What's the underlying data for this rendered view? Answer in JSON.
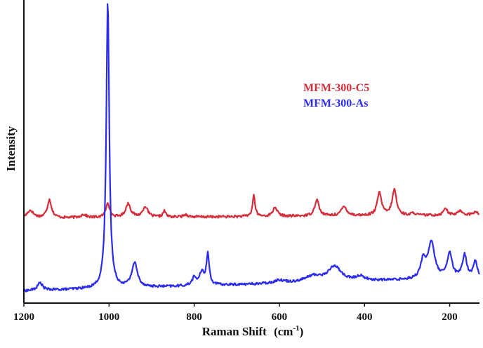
{
  "chart_data": {
    "type": "line",
    "xlabel": "Raman Shift",
    "xlabel_unit_base": "cm",
    "xlabel_unit_sup": "-1",
    "ylabel": "Intensity",
    "xlim": [
      1200,
      130
    ],
    "x_reversed": true,
    "x_ticks": [
      1200,
      1000,
      800,
      600,
      400,
      200
    ],
    "y_ticks_shown": false,
    "grid": false,
    "legend_position": "top-right",
    "series": [
      {
        "name": "MFM-300-C5",
        "color": "#d42e3a",
        "baseline": 0.28,
        "noise": 0.004,
        "slope": 1e-05,
        "peaks": [
          {
            "x": 1185,
            "h": 0.025,
            "w": 9
          },
          {
            "x": 1140,
            "h": 0.06,
            "w": 6
          },
          {
            "x": 1060,
            "h": 0.01,
            "w": 8
          },
          {
            "x": 1003,
            "h": 0.05,
            "w": 5
          },
          {
            "x": 955,
            "h": 0.045,
            "w": 7
          },
          {
            "x": 915,
            "h": 0.035,
            "w": 7
          },
          {
            "x": 870,
            "h": 0.02,
            "w": 4
          },
          {
            "x": 820,
            "h": 0.008,
            "w": 6
          },
          {
            "x": 660,
            "h": 0.07,
            "w": 3.5
          },
          {
            "x": 610,
            "h": 0.03,
            "w": 6
          },
          {
            "x": 512,
            "h": 0.055,
            "w": 6
          },
          {
            "x": 448,
            "h": 0.03,
            "w": 8
          },
          {
            "x": 365,
            "h": 0.075,
            "w": 6
          },
          {
            "x": 330,
            "h": 0.085,
            "w": 6
          },
          {
            "x": 285,
            "h": 0.008,
            "w": 5
          },
          {
            "x": 210,
            "h": 0.025,
            "w": 5
          },
          {
            "x": 175,
            "h": 0.015,
            "w": 6
          },
          {
            "x": 140,
            "h": 0.01,
            "w": 6
          }
        ]
      },
      {
        "name": "MFM-300-As",
        "color": "#2b2bee",
        "baseline": 0.04,
        "noise": 0.004,
        "slope": 4e-05,
        "peaks": [
          {
            "x": 1162,
            "h": 0.025,
            "w": 7
          },
          {
            "x": 1003,
            "h": 0.95,
            "w": 4.2
          },
          {
            "x": 940,
            "h": 0.08,
            "w": 8
          },
          {
            "x": 800,
            "h": 0.025,
            "w": 6
          },
          {
            "x": 782,
            "h": 0.04,
            "w": 7
          },
          {
            "x": 768,
            "h": 0.1,
            "w": 4
          },
          {
            "x": 600,
            "h": 0.01,
            "w": 15
          },
          {
            "x": 520,
            "h": 0.02,
            "w": 25
          },
          {
            "x": 470,
            "h": 0.05,
            "w": 18
          },
          {
            "x": 410,
            "h": 0.015,
            "w": 12
          },
          {
            "x": 262,
            "h": 0.06,
            "w": 7
          },
          {
            "x": 243,
            "h": 0.12,
            "w": 9
          },
          {
            "x": 200,
            "h": 0.08,
            "w": 7
          },
          {
            "x": 165,
            "h": 0.075,
            "w": 6
          },
          {
            "x": 140,
            "h": 0.055,
            "w": 5
          }
        ]
      }
    ]
  }
}
